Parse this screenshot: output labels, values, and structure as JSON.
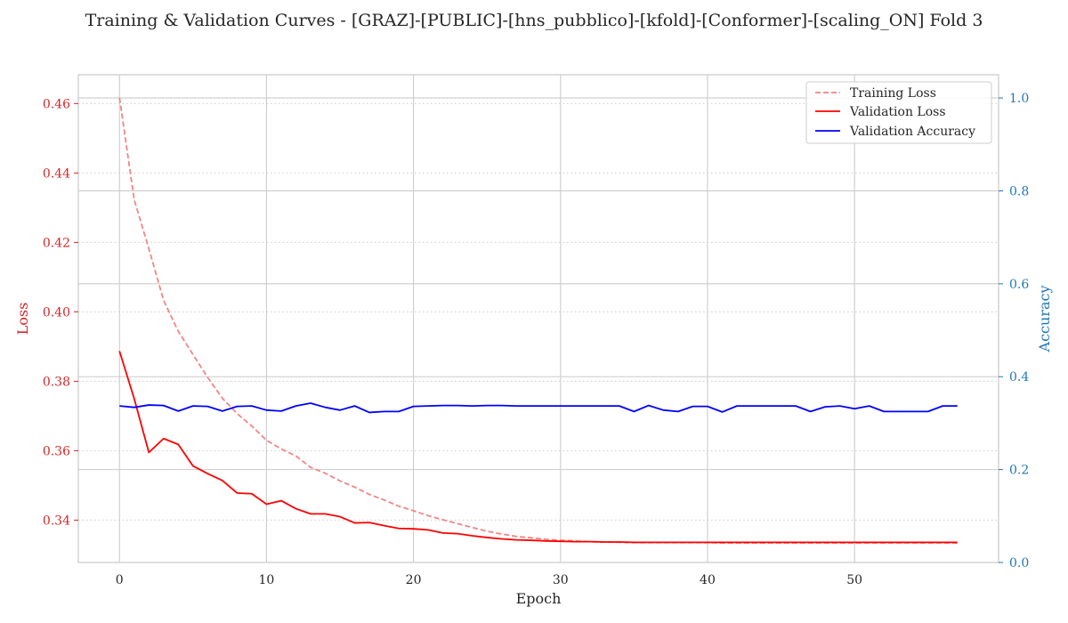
{
  "colors": {
    "train_loss": "#f08080",
    "val_loss": "#ff0000",
    "val_acc": "#0000ff",
    "left_axis": "#d62728",
    "right_axis": "#1f77b4",
    "grid": "#cccccc",
    "text": "#262626"
  },
  "chart_data": {
    "type": "line",
    "title": "Training & Validation Curves - [GRAZ]-[PUBLIC]-[hns_pubblico]-[kfold]-[Conformer]-[scaling_ON] Fold 3",
    "xlabel": "Epoch",
    "ylabel_left": "Loss",
    "ylabel_right": "Accuracy",
    "xlim": [
      -2.8,
      59.8
    ],
    "ylim_left": [
      0.3278,
      0.4683
    ],
    "ylim_right": [
      0.0,
      1.05
    ],
    "x_ticks": [
      0,
      10,
      20,
      30,
      40,
      50
    ],
    "y_left_ticks": [
      0.34,
      0.36,
      0.38,
      0.4,
      0.42,
      0.44,
      0.46
    ],
    "y_right_ticks": [
      0.0,
      0.2,
      0.4,
      0.6,
      0.8,
      1.0
    ],
    "grid": true,
    "legend_position": "top-right",
    "x": [
      0,
      1,
      2,
      3,
      4,
      5,
      6,
      7,
      8,
      9,
      10,
      11,
      12,
      13,
      14,
      15,
      16,
      17,
      18,
      19,
      20,
      21,
      22,
      23,
      24,
      25,
      26,
      27,
      28,
      29,
      30,
      31,
      32,
      33,
      34,
      35,
      36,
      37,
      38,
      39,
      40,
      41,
      42,
      43,
      44,
      45,
      46,
      47,
      48,
      49,
      50,
      51,
      52,
      53,
      54,
      55,
      56,
      57
    ],
    "series": [
      {
        "name": "Training Loss",
        "axis": "left",
        "style": "dashed",
        "values": [
          0.4617,
          0.4323,
          0.4182,
          0.4033,
          0.3944,
          0.3877,
          0.3811,
          0.3751,
          0.3707,
          0.3671,
          0.363,
          0.3605,
          0.3585,
          0.3552,
          0.3535,
          0.3513,
          0.3495,
          0.3474,
          0.3458,
          0.344,
          0.3427,
          0.3413,
          0.3401,
          0.339,
          0.3379,
          0.3368,
          0.336,
          0.3353,
          0.3349,
          0.3345,
          0.3342,
          0.334,
          0.3338,
          0.3337,
          0.3336,
          0.3335,
          0.3335,
          0.3335,
          0.3335,
          0.3335,
          0.3335,
          0.3334,
          0.3334,
          0.3334,
          0.3334,
          0.3334,
          0.3334,
          0.3334,
          0.3334,
          0.3334,
          0.3334,
          0.3334,
          0.3334,
          0.3334,
          0.3334,
          0.3334,
          0.3334,
          0.3334
        ]
      },
      {
        "name": "Validation Loss",
        "axis": "left",
        "style": "solid",
        "values": [
          0.3887,
          0.375,
          0.3595,
          0.3635,
          0.3618,
          0.3556,
          0.3534,
          0.3514,
          0.3478,
          0.3476,
          0.3446,
          0.3456,
          0.3433,
          0.3418,
          0.3418,
          0.341,
          0.3392,
          0.3393,
          0.3384,
          0.3376,
          0.3375,
          0.3372,
          0.3363,
          0.3361,
          0.3355,
          0.335,
          0.3346,
          0.3343,
          0.3342,
          0.334,
          0.3339,
          0.3338,
          0.3338,
          0.3337,
          0.3337,
          0.3336,
          0.3336,
          0.3336,
          0.3336,
          0.3336,
          0.3336,
          0.3336,
          0.3336,
          0.3336,
          0.3336,
          0.3336,
          0.3336,
          0.3336,
          0.3336,
          0.3336,
          0.3336,
          0.3336,
          0.3336,
          0.3336,
          0.3336,
          0.3336,
          0.3336,
          0.3336
        ]
      },
      {
        "name": "Validation Accuracy",
        "axis": "right",
        "style": "solid",
        "values": [
          0.337,
          0.334,
          0.339,
          0.338,
          0.326,
          0.337,
          0.336,
          0.326,
          0.336,
          0.337,
          0.328,
          0.326,
          0.337,
          0.343,
          0.334,
          0.328,
          0.337,
          0.323,
          0.325,
          0.325,
          0.336,
          0.337,
          0.338,
          0.338,
          0.337,
          0.338,
          0.338,
          0.337,
          0.337,
          0.337,
          0.337,
          0.337,
          0.337,
          0.337,
          0.337,
          0.325,
          0.338,
          0.328,
          0.325,
          0.336,
          0.336,
          0.324,
          0.337,
          0.337,
          0.337,
          0.337,
          0.337,
          0.325,
          0.335,
          0.337,
          0.331,
          0.337,
          0.325,
          0.325,
          0.325,
          0.325,
          0.337,
          0.337
        ]
      }
    ]
  }
}
